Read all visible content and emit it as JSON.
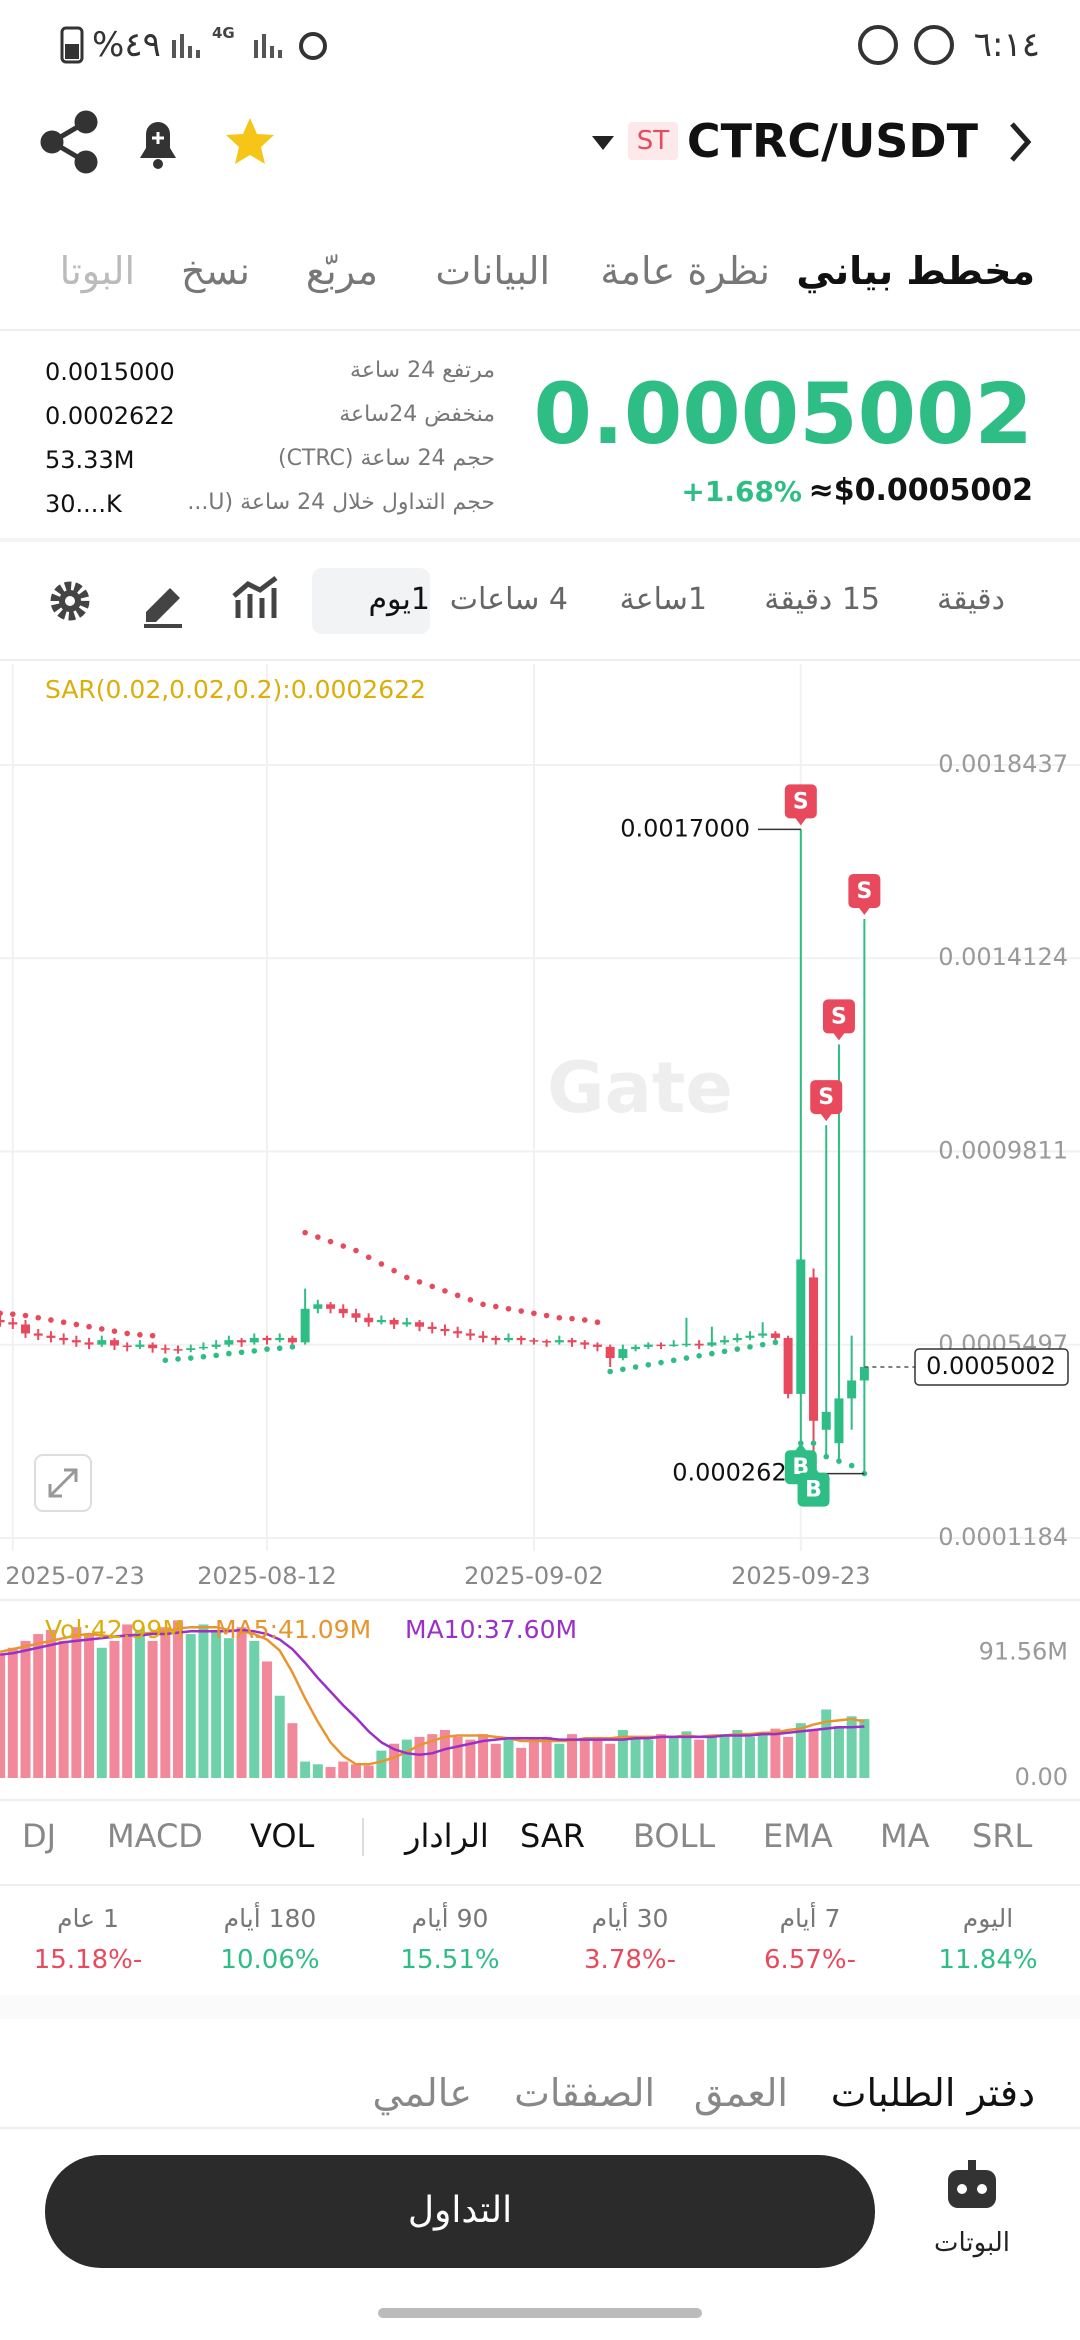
{
  "status_bar": {
    "time": "٦:١٤",
    "battery": "%٤٩",
    "network": "4G"
  },
  "header": {
    "pair": "CTRC/USDT",
    "badge": "ST"
  },
  "tabs": [
    "مخطط بياني",
    "نظرة عامة",
    "البيانات",
    "مربّع",
    "نسخ",
    "البوتا"
  ],
  "active_tab": 0,
  "ticker": {
    "price": "0.0005002",
    "change": "+1.68%",
    "usd": "≈$0.0005002",
    "stats": [
      {
        "label": "مرتفع 24 ساعة",
        "value": "0.0015000"
      },
      {
        "label": "منخفض 24ساعة",
        "value": "0.0002622"
      },
      {
        "label": "حجم 24 ساعة (CTRC)",
        "value": "53.33M"
      },
      {
        "label": "حجم التداول خلال 24 ساعة (U...",
        "value": "30....K"
      }
    ]
  },
  "timeframes": [
    "دقيقة",
    "15 دقيقة",
    "1ساعة",
    "4 ساعات",
    "1يوم"
  ],
  "active_timeframe": 4,
  "price_chart": {
    "type": "candlestick",
    "sar_label": "SAR(0.02,0.02,0.2):0.0002622",
    "watermark": "Gate",
    "up_color": "#2ebd85",
    "down_color": "#e9495d",
    "ylim": [
      8.94e-05,
      0.0020691
    ],
    "yticks": [
      0.0018437,
      0.0014124,
      0.0009811,
      0.0005497,
      0.0001184
    ],
    "xticks": [
      {
        "value": 1,
        "label": "2025-07-23"
      },
      {
        "value": 21,
        "label": "2025-08-12"
      },
      {
        "value": 42,
        "label": "2025-09-02"
      },
      {
        "value": 63,
        "label": "2025-09-23"
      }
    ],
    "grid": true,
    "candles": [
      [
        0.000605,
        0.000615,
        0.00059,
        0.0006
      ],
      [
        0.0006,
        0.00061,
        0.000585,
        0.000595
      ],
      [
        0.000595,
        0.000605,
        0.000565,
        0.000575
      ],
      [
        0.000575,
        0.000585,
        0.00056,
        0.00057
      ],
      [
        0.00057,
        0.00058,
        0.000555,
        0.000565
      ],
      [
        0.000565,
        0.000575,
        0.00055,
        0.00056
      ],
      [
        0.00056,
        0.00057,
        0.000545,
        0.000555
      ],
      [
        0.000555,
        0.000565,
        0.00054,
        0.00055
      ],
      [
        0.00055,
        0.00057,
        0.000545,
        0.00056
      ],
      [
        0.00056,
        0.000565,
        0.000538,
        0.000548
      ],
      [
        0.000548,
        0.000555,
        0.000535,
        0.000545
      ],
      [
        0.000545,
        0.00056,
        0.00054,
        0.00055
      ],
      [
        0.00055,
        0.000555,
        0.000532,
        0.000542
      ],
      [
        0.000542,
        0.00055,
        0.00053,
        0.00054
      ],
      [
        0.00054,
        0.000548,
        0.00053,
        0.000538
      ],
      [
        0.000538,
        0.00055,
        0.000533,
        0.000542
      ],
      [
        0.000542,
        0.000555,
        0.000538,
        0.000545
      ],
      [
        0.000545,
        0.00056,
        0.00054,
        0.00055
      ],
      [
        0.00055,
        0.00057,
        0.000545,
        0.00056
      ],
      [
        0.00056,
        0.000565,
        0.000545,
        0.000555
      ],
      [
        0.000555,
        0.000575,
        0.00055,
        0.000565
      ],
      [
        0.000565,
        0.00057,
        0.00055,
        0.00056
      ],
      [
        0.00056,
        0.000575,
        0.000555,
        0.000565
      ],
      [
        0.000565,
        0.00057,
        0.000545,
        0.000555
      ],
      [
        0.000555,
        0.000675,
        0.00055,
        0.00063
      ],
      [
        0.00063,
        0.00065,
        0.00062,
        0.00064
      ],
      [
        0.00064,
        0.000645,
        0.00062,
        0.00063
      ],
      [
        0.00063,
        0.00064,
        0.00061,
        0.00062
      ],
      [
        0.00062,
        0.00063,
        0.0006,
        0.00061
      ],
      [
        0.00061,
        0.00062,
        0.00059,
        0.0006
      ],
      [
        0.0006,
        0.000615,
        0.000595,
        0.000605
      ],
      [
        0.000605,
        0.00061,
        0.000585,
        0.000595
      ],
      [
        0.000595,
        0.00061,
        0.00059,
        0.0006
      ],
      [
        0.0006,
        0.000605,
        0.00058,
        0.00059
      ],
      [
        0.00059,
        0.0006,
        0.000575,
        0.000585
      ],
      [
        0.000585,
        0.000595,
        0.00057,
        0.00058
      ],
      [
        0.00058,
        0.00059,
        0.000565,
        0.000575
      ],
      [
        0.000575,
        0.000585,
        0.00056,
        0.00057
      ],
      [
        0.00057,
        0.00058,
        0.000555,
        0.000565
      ],
      [
        0.000565,
        0.00057,
        0.00055,
        0.00056
      ],
      [
        0.00056,
        0.000575,
        0.000555,
        0.000565
      ],
      [
        0.000565,
        0.00057,
        0.00055,
        0.00056
      ],
      [
        0.00056,
        0.000565,
        0.00055,
        0.000558
      ],
      [
        0.000558,
        0.000562,
        0.000545,
        0.000555
      ],
      [
        0.000555,
        0.00057,
        0.00055,
        0.00056
      ],
      [
        0.00056,
        0.000565,
        0.000545,
        0.000555
      ],
      [
        0.000555,
        0.00056,
        0.00054,
        0.00055
      ],
      [
        0.00055,
        0.000555,
        0.000535,
        0.000545
      ],
      [
        0.000545,
        0.00055,
        0.0005,
        0.00052
      ],
      [
        0.00052,
        0.00055,
        0.000515,
        0.00054
      ],
      [
        0.00054,
        0.00055,
        0.000535,
        0.000545
      ],
      [
        0.000545,
        0.000555,
        0.00054,
        0.00055
      ],
      [
        0.00055,
        0.000555,
        0.00054,
        0.000548
      ],
      [
        0.000548,
        0.00056,
        0.000545,
        0.00055
      ],
      [
        0.00055,
        0.00061,
        0.000545,
        0.000552
      ],
      [
        0.000552,
        0.00056,
        0.00054,
        0.000548
      ],
      [
        0.000548,
        0.00059,
        0.000545,
        0.000555
      ],
      [
        0.000555,
        0.00057,
        0.00055,
        0.00056
      ],
      [
        0.00056,
        0.000575,
        0.000555,
        0.000565
      ],
      [
        0.000565,
        0.00058,
        0.00056,
        0.00057
      ],
      [
        0.00057,
        0.0006,
        0.000565,
        0.000575
      ],
      [
        0.000575,
        0.00058,
        0.00056,
        0.000565
      ],
      [
        0.000565,
        0.00057,
        0.00043,
        0.00044
      ],
      [
        0.00044,
        0.0017,
        0.00033,
        0.00074
      ],
      [
        0.0007,
        0.00072,
        0.00028,
        0.00038
      ],
      [
        0.00036,
        0.00104,
        0.0003,
        0.0004
      ],
      [
        0.00033,
        0.00122,
        0.00029,
        0.00043
      ],
      [
        0.00043,
        0.00057,
        0.00036,
        0.00047
      ],
      [
        0.00047,
        0.0015,
        0.0002622,
        0.0005002
      ]
    ],
    "sar": [
      0.00062,
      0.000618,
      0.000615,
      0.00061,
      0.000605,
      0.0006,
      0.000595,
      0.00059,
      0.000585,
      0.00058,
      0.000575,
      0.000572,
      0.00057,
      0.000515,
      0.000518,
      0.00052,
      0.000523,
      0.000526,
      0.00053,
      0.000533,
      0.000536,
      0.00054,
      0.000542,
      0.000545,
      0.0008,
      0.00079,
      0.00078,
      0.00077,
      0.00076,
      0.000745,
      0.00073,
      0.000715,
      0.0007,
      0.00069,
      0.00068,
      0.00067,
      0.00066,
      0.00065,
      0.00064,
      0.000635,
      0.00063,
      0.000625,
      0.00062,
      0.000615,
      0.00061,
      0.000608,
      0.000605,
      0.0006,
      0.00049,
      0.000495,
      0.0005,
      0.000505,
      0.00051,
      0.000515,
      0.00052,
      0.000525,
      0.00053,
      0.000535,
      0.00054,
      0.000545,
      0.00055,
      0.000555,
      0.000558,
      0.00033,
      0.00033,
      0.0003,
      0.00029,
      0.00028,
      0.0002622
    ],
    "sar_color": "#e9495d",
    "sar_up_color": "#2ebd85",
    "trade_markers": [
      {
        "side": "S",
        "index": 63
      },
      {
        "side": "S",
        "index": 65
      },
      {
        "side": "S",
        "index": 66
      },
      {
        "side": "S",
        "index": 68
      },
      {
        "side": "B",
        "index": 63
      },
      {
        "side": "B",
        "index": 64
      }
    ],
    "high_label": {
      "index": 63,
      "label": "0.0017000"
    },
    "low_label": {
      "index": 68,
      "label": "0.0002622"
    },
    "last_label": {
      "index": 68,
      "label": "0.0005002"
    }
  },
  "volume_chart": {
    "type": "bar",
    "vol_label": "Vol:42.99M",
    "ma5_label": "MA5:41.09M",
    "ma10_label": "MA10:37.60M",
    "ma5_color": "#e8952f",
    "ma10_color": "#9b30c9",
    "ylim": [
      0,
      124
    ],
    "yticks": [
      {
        "value": 91.56,
        "label": "91.56M"
      },
      {
        "value": 0,
        "label": "0.00"
      }
    ],
    "values": [
      90,
      95,
      100,
      105,
      108,
      100,
      110,
      105,
      95,
      100,
      112,
      108,
      100,
      110,
      115,
      105,
      112,
      108,
      102,
      110,
      100,
      85,
      60,
      40,
      12,
      10,
      8,
      12,
      10,
      9,
      20,
      25,
      28,
      30,
      32,
      35,
      30,
      28,
      32,
      25,
      30,
      22,
      28,
      30,
      25,
      32,
      28,
      30,
      25,
      35,
      30,
      28,
      32,
      30,
      34,
      28,
      30,
      32,
      35,
      30,
      33,
      36,
      30,
      40,
      35,
      50,
      38,
      45,
      42.99
    ],
    "ma5": [
      92,
      94,
      96,
      98,
      100,
      102,
      104,
      105,
      104,
      103,
      104,
      105,
      106,
      107,
      109,
      110,
      110,
      110,
      108,
      107,
      105,
      101,
      93,
      77,
      58,
      41,
      26,
      16,
      10,
      10,
      12,
      15,
      19,
      24,
      27,
      30,
      31,
      31,
      31,
      30,
      29,
      27,
      27,
      27,
      27,
      27,
      29,
      29,
      29,
      30,
      30,
      30,
      30,
      30,
      31,
      30,
      31,
      31,
      32,
      32,
      33,
      33,
      35,
      36,
      39,
      41,
      42,
      43,
      41.09
    ],
    "ma10": [
      90,
      91,
      93,
      95,
      97,
      99,
      100,
      101,
      102,
      103,
      104,
      104,
      105,
      105,
      106,
      107,
      107,
      107,
      107,
      108,
      107,
      105,
      101,
      94,
      84,
      73,
      63,
      53,
      44,
      34,
      26,
      21,
      18,
      17,
      18,
      21,
      23,
      25,
      27,
      28,
      29,
      29,
      29,
      29,
      28,
      28,
      28,
      28,
      28,
      28,
      29,
      29,
      30,
      30,
      30,
      30,
      30,
      31,
      31,
      31,
      32,
      32,
      33,
      34,
      35,
      36,
      37,
      37,
      37.6
    ]
  },
  "indicators": [
    "DJ",
    "MACD",
    "VOL",
    "الرادار",
    "SAR",
    "BOLL",
    "EMA",
    "MA",
    "SRL"
  ],
  "active_indicators": [
    2,
    3,
    4
  ],
  "periods": [
    {
      "label": "اليوم",
      "value": "11.84%"
    },
    {
      "label": "7 أيام",
      "value": "6.57%-"
    },
    {
      "label": "30 أيام",
      "value": "3.78%-"
    },
    {
      "label": "90 أيام",
      "value": "15.51%"
    },
    {
      "label": "180 أيام",
      "value": "10.06%"
    },
    {
      "label": "1 عام",
      "value": "15.18%-"
    }
  ],
  "order_tabs": [
    "دفتر الطلبات",
    "العمق",
    "الصفقات",
    "عالمي"
  ],
  "trade_button": "التداول",
  "bots": "البوتات"
}
